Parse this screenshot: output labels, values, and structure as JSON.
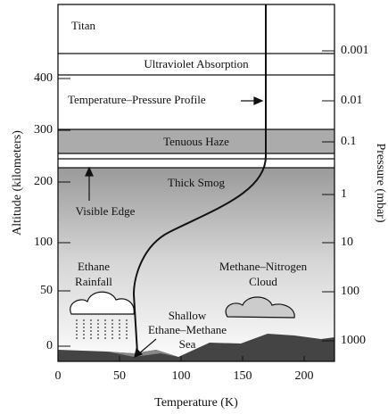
{
  "title": "Titan",
  "layers": {
    "uv": "Ultraviolet Absorption",
    "profile": "Temperature–Pressure Profile",
    "haze": "Tenuous Haze",
    "smog": "Thick Smog",
    "edge": "Visible Edge"
  },
  "features": {
    "rain": [
      "Ethane",
      "Rainfall"
    ],
    "cloud": [
      "Methane–Nitrogen",
      "Cloud"
    ],
    "sea": [
      "Shallow",
      "Ethane–Methane",
      "Sea"
    ]
  },
  "axes": {
    "x_label": "Temperature (K)",
    "y_label": "Altitude (kilometers)",
    "y2_label": "Pressure (mbar)",
    "xticks": [
      0,
      50,
      100,
      150,
      200
    ],
    "yticks": [
      400,
      300,
      200,
      100,
      50,
      0
    ],
    "y2ticks": [
      0.001,
      0.01,
      0.1,
      1,
      10,
      100,
      1000
    ]
  }
}
